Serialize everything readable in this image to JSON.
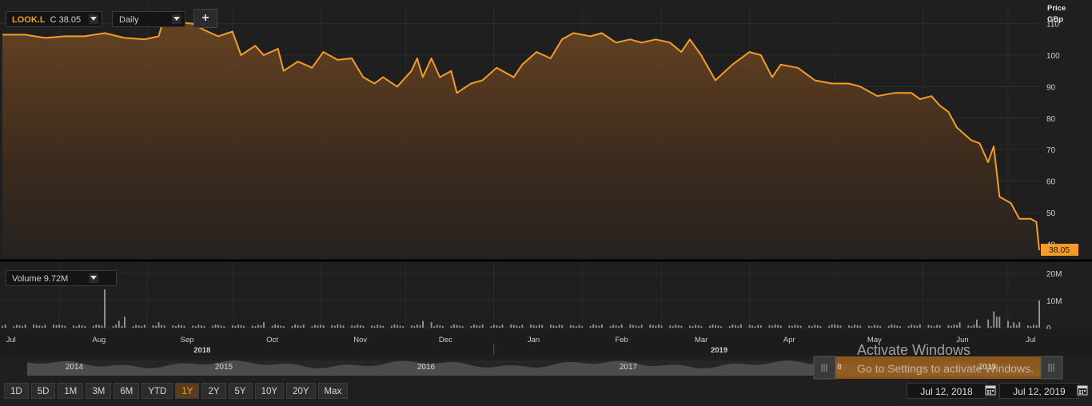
{
  "symbol": {
    "ticker": "LOOK.L",
    "close_prefix": "C",
    "close_value": "38.05"
  },
  "interval": {
    "selected": "Daily"
  },
  "add_button": {
    "label": "+"
  },
  "volume_selector": {
    "label": "Volume",
    "value": "9.72M"
  },
  "price_axis": {
    "title_line1": "Price",
    "title_line2": "GBp",
    "last_price_label": "38.05"
  },
  "navigator": {
    "years": [
      "2014",
      "2015",
      "2016",
      "2017",
      "2019"
    ]
  },
  "periods": [
    {
      "label": "1D"
    },
    {
      "label": "5D"
    },
    {
      "label": "1M"
    },
    {
      "label": "3M"
    },
    {
      "label": "6M"
    },
    {
      "label": "YTD"
    },
    {
      "label": "1Y",
      "active": true
    },
    {
      "label": "2Y"
    },
    {
      "label": "5Y"
    },
    {
      "label": "10Y"
    },
    {
      "label": "20Y"
    },
    {
      "label": "Max"
    }
  ],
  "date_range": {
    "from": "Jul 12, 2018",
    "to": "Jul 12, 2019"
  },
  "watermark": {
    "line1": "Activate Windows",
    "line2": "Go to Settings to activate Windows."
  },
  "colors": {
    "line": "#f39c2c",
    "background": "#1f1f1f",
    "grid": "#2e2e2e",
    "volume_bar": "#9a9a9a"
  },
  "chart_data": {
    "type": "area",
    "price": {
      "unit": "GBp",
      "y_ticks": [
        40,
        50,
        60,
        70,
        80,
        90,
        100,
        110
      ],
      "ylim": [
        35,
        116
      ],
      "x_months": [
        "Jul",
        "Aug",
        "Sep",
        "Oct",
        "Nov",
        "Dec",
        "Jan",
        "Feb",
        "Mar",
        "Apr",
        "May",
        "Jun",
        "Jul"
      ],
      "x_years": [
        "2018",
        "2019"
      ],
      "points": [
        [
          "2018-07-12",
          106.5
        ],
        [
          "2018-07-20",
          106.5
        ],
        [
          "2018-07-27",
          105.5
        ],
        [
          "2018-08-03",
          106
        ],
        [
          "2018-08-10",
          106
        ],
        [
          "2018-08-17",
          107
        ],
        [
          "2018-08-24",
          105.5
        ],
        [
          "2018-08-31",
          105
        ],
        [
          "2018-09-05",
          106
        ],
        [
          "2018-09-07",
          112
        ],
        [
          "2018-09-12",
          110.5
        ],
        [
          "2018-09-17",
          110
        ],
        [
          "2018-09-21",
          108
        ],
        [
          "2018-09-26",
          106
        ],
        [
          "2018-10-01",
          107.5
        ],
        [
          "2018-10-04",
          100
        ],
        [
          "2018-10-09",
          103
        ],
        [
          "2018-10-12",
          100
        ],
        [
          "2018-10-17",
          102
        ],
        [
          "2018-10-19",
          95
        ],
        [
          "2018-10-24",
          98
        ],
        [
          "2018-10-29",
          96
        ],
        [
          "2018-11-02",
          101
        ],
        [
          "2018-11-07",
          98.5
        ],
        [
          "2018-11-12",
          99
        ],
        [
          "2018-11-16",
          93
        ],
        [
          "2018-11-20",
          91
        ],
        [
          "2018-11-23",
          93
        ],
        [
          "2018-11-28",
          90
        ],
        [
          "2018-12-03",
          95
        ],
        [
          "2018-12-05",
          99
        ],
        [
          "2018-12-07",
          93
        ],
        [
          "2018-12-10",
          99
        ],
        [
          "2018-12-13",
          93
        ],
        [
          "2018-12-17",
          95
        ],
        [
          "2018-12-19",
          88
        ],
        [
          "2018-12-24",
          91
        ],
        [
          "2018-12-28",
          92
        ],
        [
          "2019-01-02",
          96
        ],
        [
          "2019-01-08",
          93
        ],
        [
          "2019-01-11",
          97
        ],
        [
          "2019-01-16",
          101
        ],
        [
          "2019-01-21",
          99
        ],
        [
          "2019-01-25",
          105
        ],
        [
          "2019-01-29",
          107
        ],
        [
          "2019-02-04",
          106
        ],
        [
          "2019-02-08",
          107
        ],
        [
          "2019-02-13",
          104
        ],
        [
          "2019-02-18",
          105
        ],
        [
          "2019-02-22",
          104
        ],
        [
          "2019-02-27",
          105
        ],
        [
          "2019-03-04",
          104
        ],
        [
          "2019-03-08",
          101
        ],
        [
          "2019-03-11",
          105
        ],
        [
          "2019-03-15",
          100
        ],
        [
          "2019-03-20",
          92
        ],
        [
          "2019-03-26",
          97
        ],
        [
          "2019-04-01",
          101
        ],
        [
          "2019-04-05",
          100
        ],
        [
          "2019-04-09",
          93
        ],
        [
          "2019-04-12",
          97
        ],
        [
          "2019-04-18",
          96
        ],
        [
          "2019-04-24",
          92
        ],
        [
          "2019-04-30",
          91
        ],
        [
          "2019-05-06",
          91
        ],
        [
          "2019-05-10",
          90
        ],
        [
          "2019-05-16",
          87
        ],
        [
          "2019-05-22",
          88
        ],
        [
          "2019-05-28",
          88
        ],
        [
          "2019-05-31",
          86
        ],
        [
          "2019-06-04",
          87
        ],
        [
          "2019-06-07",
          84
        ],
        [
          "2019-06-10",
          82
        ],
        [
          "2019-06-13",
          77
        ],
        [
          "2019-06-18",
          73
        ],
        [
          "2019-06-21",
          72
        ],
        [
          "2019-06-24",
          66
        ],
        [
          "2019-06-26",
          71
        ],
        [
          "2019-06-28",
          55
        ],
        [
          "2019-07-02",
          53
        ],
        [
          "2019-07-05",
          48
        ],
        [
          "2019-07-09",
          48
        ],
        [
          "2019-07-11",
          47
        ],
        [
          "2019-07-12",
          38.05
        ]
      ]
    },
    "volume": {
      "unit": "M",
      "y_ticks": [
        0,
        10,
        20
      ],
      "ylim": [
        0,
        22
      ],
      "bars": [
        [
          "2018-08-17",
          14
        ],
        [
          "2018-08-24",
          4
        ],
        [
          "2018-08-22",
          2.5
        ],
        [
          "2018-09-05",
          2
        ],
        [
          "2018-10-12",
          2
        ],
        [
          "2018-12-07",
          2.5
        ],
        [
          "2018-12-10",
          2
        ],
        [
          "2019-06-14",
          2
        ],
        [
          "2019-06-20",
          3
        ],
        [
          "2019-06-24",
          3
        ],
        [
          "2019-06-26",
          6
        ],
        [
          "2019-06-27",
          4
        ],
        [
          "2019-06-28",
          4
        ],
        [
          "2019-07-01",
          2.5
        ],
        [
          "2019-07-03",
          2
        ],
        [
          "2019-07-05",
          2
        ],
        [
          "2019-07-12",
          10
        ]
      ],
      "baseline": 0.9
    }
  }
}
